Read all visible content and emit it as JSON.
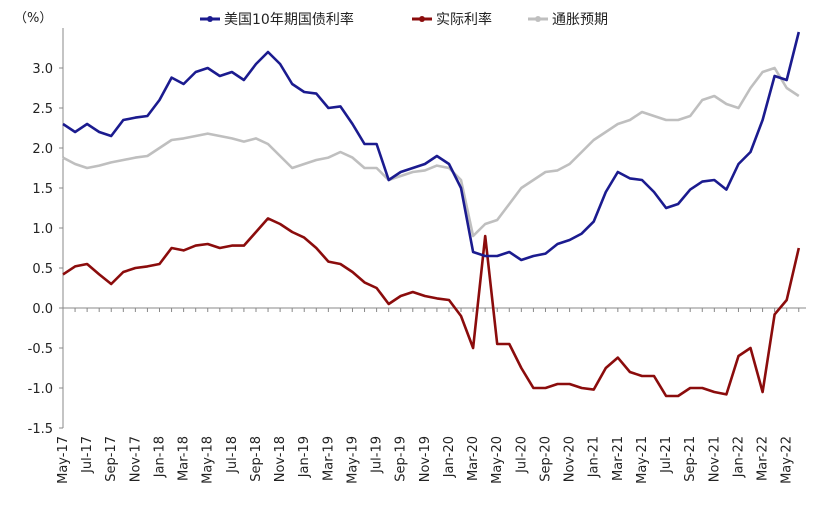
{
  "chart_data": {
    "type": "line",
    "unit_label": "（%）",
    "ylim": [
      -1.5,
      3.5
    ],
    "y_ticks": [
      {
        "value": 3.0,
        "label": "3.0"
      },
      {
        "value": 2.5,
        "label": "2.5"
      },
      {
        "value": 2.0,
        "label": "2.0"
      },
      {
        "value": 1.5,
        "label": "1.5"
      },
      {
        "value": 1.0,
        "label": "1.0"
      },
      {
        "value": 0.5,
        "label": "0.5"
      },
      {
        "value": 0.0,
        "label": "0.0"
      },
      {
        "value": -0.5,
        "label": "-0.5"
      },
      {
        "value": -1.0,
        "label": "-1.0"
      },
      {
        "value": -1.5,
        "label": "-1.5"
      }
    ],
    "negative_tick_color": "#e8191e",
    "x_ticks": [
      "May-17",
      "Jul-17",
      "Sep-17",
      "Nov-17",
      "Jan-18",
      "Mar-18",
      "May-18",
      "Jul-18",
      "Sep-18",
      "Nov-18",
      "Jan-19",
      "Mar-19",
      "May-19",
      "Jul-19",
      "Sep-19",
      "Nov-19",
      "Jan-20",
      "Mar-20",
      "May-20",
      "Jul-20",
      "Sep-20",
      "Nov-20",
      "Jan-21",
      "Mar-21",
      "May-21",
      "Jul-21",
      "Sep-21",
      "Nov-21",
      "Jan-22",
      "Mar-22",
      "May-22"
    ],
    "legend_position": "top",
    "grid": false,
    "series": [
      {
        "name": "美国10年期国债利率",
        "color": "#1b1b8f",
        "x": [
          "2017-05",
          "2017-06",
          "2017-07",
          "2017-08",
          "2017-09",
          "2017-10",
          "2017-11",
          "2017-12",
          "2018-01",
          "2018-02",
          "2018-03",
          "2018-04",
          "2018-05",
          "2018-06",
          "2018-07",
          "2018-08",
          "2018-09",
          "2018-10",
          "2018-11",
          "2018-12",
          "2019-01",
          "2019-02",
          "2019-03",
          "2019-04",
          "2019-05",
          "2019-06",
          "2019-07",
          "2019-08",
          "2019-09",
          "2019-10",
          "2019-11",
          "2019-12",
          "2020-01",
          "2020-02",
          "2020-03",
          "2020-04",
          "2020-05",
          "2020-06",
          "2020-07",
          "2020-08",
          "2020-09",
          "2020-10",
          "2020-11",
          "2020-12",
          "2021-01",
          "2021-02",
          "2021-03",
          "2021-04",
          "2021-05",
          "2021-06",
          "2021-07",
          "2021-08",
          "2021-09",
          "2021-10",
          "2021-11",
          "2021-12",
          "2022-01",
          "2022-02",
          "2022-03",
          "2022-04",
          "2022-05",
          "2022-06"
        ],
        "values": [
          2.3,
          2.2,
          2.3,
          2.2,
          2.15,
          2.35,
          2.38,
          2.4,
          2.6,
          2.88,
          2.8,
          2.95,
          3.0,
          2.9,
          2.95,
          2.85,
          3.05,
          3.2,
          3.05,
          2.8,
          2.7,
          2.68,
          2.5,
          2.52,
          2.3,
          2.05,
          2.05,
          1.6,
          1.7,
          1.75,
          1.8,
          1.9,
          1.8,
          1.5,
          0.7,
          0.65,
          0.65,
          0.7,
          0.6,
          0.65,
          0.68,
          0.8,
          0.85,
          0.93,
          1.08,
          1.45,
          1.7,
          1.62,
          1.6,
          1.45,
          1.25,
          1.3,
          1.48,
          1.58,
          1.6,
          1.48,
          1.8,
          1.95,
          2.35,
          2.9,
          2.85,
          3.45
        ]
      },
      {
        "name": "实际利率",
        "color": "#8b0c0c",
        "x": [
          "2017-05",
          "2017-06",
          "2017-07",
          "2017-08",
          "2017-09",
          "2017-10",
          "2017-11",
          "2017-12",
          "2018-01",
          "2018-02",
          "2018-03",
          "2018-04",
          "2018-05",
          "2018-06",
          "2018-07",
          "2018-08",
          "2018-09",
          "2018-10",
          "2018-11",
          "2018-12",
          "2019-01",
          "2019-02",
          "2019-03",
          "2019-04",
          "2019-05",
          "2019-06",
          "2019-07",
          "2019-08",
          "2019-09",
          "2019-10",
          "2019-11",
          "2019-12",
          "2020-01",
          "2020-02",
          "2020-03",
          "2020-04",
          "2020-05",
          "2020-06",
          "2020-07",
          "2020-08",
          "2020-09",
          "2020-10",
          "2020-11",
          "2020-12",
          "2021-01",
          "2021-02",
          "2021-03",
          "2021-04",
          "2021-05",
          "2021-06",
          "2021-07",
          "2021-08",
          "2021-09",
          "2021-10",
          "2021-11",
          "2021-12",
          "2022-01",
          "2022-02",
          "2022-03",
          "2022-04",
          "2022-05",
          "2022-06"
        ],
        "values": [
          0.42,
          0.52,
          0.55,
          0.42,
          0.3,
          0.45,
          0.5,
          0.52,
          0.55,
          0.75,
          0.72,
          0.78,
          0.8,
          0.75,
          0.78,
          0.78,
          0.95,
          1.12,
          1.05,
          0.95,
          0.88,
          0.75,
          0.58,
          0.55,
          0.45,
          0.32,
          0.25,
          0.05,
          0.15,
          0.2,
          0.15,
          0.12,
          0.1,
          -0.1,
          -0.5,
          0.9,
          -0.45,
          -0.45,
          -0.75,
          -1.0,
          -1.0,
          -0.95,
          -0.95,
          -1.0,
          -1.02,
          -0.75,
          -0.62,
          -0.8,
          -0.85,
          -0.85,
          -1.1,
          -1.1,
          -1.0,
          -1.0,
          -1.05,
          -1.08,
          -0.6,
          -0.5,
          -1.05,
          -0.08,
          0.1,
          0.75
        ]
      },
      {
        "name": "通胀预期",
        "color": "#bfbfbf",
        "x": [
          "2017-05",
          "2017-06",
          "2017-07",
          "2017-08",
          "2017-09",
          "2017-10",
          "2017-11",
          "2017-12",
          "2018-01",
          "2018-02",
          "2018-03",
          "2018-04",
          "2018-05",
          "2018-06",
          "2018-07",
          "2018-08",
          "2018-09",
          "2018-10",
          "2018-11",
          "2018-12",
          "2019-01",
          "2019-02",
          "2019-03",
          "2019-04",
          "2019-05",
          "2019-06",
          "2019-07",
          "2019-08",
          "2019-09",
          "2019-10",
          "2019-11",
          "2019-12",
          "2020-01",
          "2020-02",
          "2020-03",
          "2020-04",
          "2020-05",
          "2020-06",
          "2020-07",
          "2020-08",
          "2020-09",
          "2020-10",
          "2020-11",
          "2020-12",
          "2021-01",
          "2021-02",
          "2021-03",
          "2021-04",
          "2021-05",
          "2021-06",
          "2021-07",
          "2021-08",
          "2021-09",
          "2021-10",
          "2021-11",
          "2021-12",
          "2022-01",
          "2022-02",
          "2022-03",
          "2022-04",
          "2022-05",
          "2022-06"
        ],
        "values": [
          1.88,
          1.8,
          1.75,
          1.78,
          1.82,
          1.85,
          1.88,
          1.9,
          2.0,
          2.1,
          2.12,
          2.15,
          2.18,
          2.15,
          2.12,
          2.08,
          2.12,
          2.05,
          1.9,
          1.75,
          1.8,
          1.85,
          1.88,
          1.95,
          1.88,
          1.75,
          1.75,
          1.6,
          1.65,
          1.7,
          1.72,
          1.78,
          1.75,
          1.6,
          0.9,
          1.05,
          1.1,
          1.3,
          1.5,
          1.6,
          1.7,
          1.72,
          1.8,
          1.95,
          2.1,
          2.2,
          2.3,
          2.35,
          2.45,
          2.4,
          2.35,
          2.35,
          2.4,
          2.6,
          2.65,
          2.55,
          2.5,
          2.75,
          2.95,
          3.0,
          2.75,
          2.65
        ]
      }
    ]
  }
}
